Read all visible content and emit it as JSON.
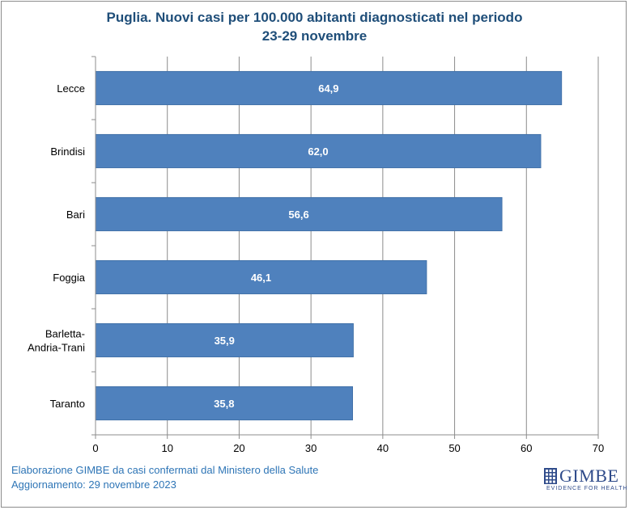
{
  "chart_data": {
    "type": "bar",
    "orientation": "horizontal",
    "title_lines": [
      "Puglia. Nuovi casi per 100.000 abitanti diagnosticati nel periodo",
      "23-29 novembre"
    ],
    "categories": [
      [
        "Lecce"
      ],
      [
        "Brindisi"
      ],
      [
        "Bari"
      ],
      [
        "Foggia"
      ],
      [
        "Barletta-",
        "Andria-Trani"
      ],
      [
        "Taranto"
      ]
    ],
    "values": [
      64.9,
      62.0,
      56.6,
      46.1,
      35.9,
      35.8
    ],
    "value_labels": [
      "64,9",
      "62,0",
      "56,6",
      "46,1",
      "35,9",
      "35,8"
    ],
    "xlim": [
      0,
      70
    ],
    "x_ticks": [
      0,
      10,
      20,
      30,
      40,
      50,
      60,
      70
    ],
    "grid": "vertical",
    "bar_color": "#4f81bd",
    "label_color": "#ffffff"
  },
  "footer": {
    "line1": "Elaborazione GIMBE da casi confermati dal Ministero della Salute",
    "line2": "Aggiornamento: 29 novembre 2023"
  },
  "logo": {
    "name": "GIMBE",
    "tagline": "EVIDENCE FOR HEALTH",
    "icon": "gimbe-grid-icon"
  }
}
